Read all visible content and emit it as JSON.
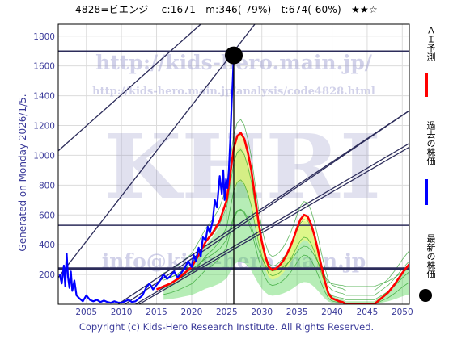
{
  "header": {
    "title": "4828=ビエンジ　 c:1671　m:346(-79%)　t:674(-60%)　★★☆"
  },
  "side_note": "Generated on Monday 2026/1/5.",
  "footer": "Copyright (c) Kids-Hero Research Institute. All Rights Reserved.",
  "watermarks": {
    "url_main": "http://kids-hero.main.jp/",
    "url_analysis": "http://kids-hero.main.jp/analysis/code4828.html",
    "logo": "KHRI",
    "email": "info@kids-hero.main.jp"
  },
  "legend": {
    "ai_forecast": "ＡＩ予測",
    "past_price": "過去の株価",
    "latest_price": "最新の株価"
  },
  "colors": {
    "ai_forecast": "#ff0000",
    "past_price": "#0000ff",
    "latest_price": "#000000",
    "band_green": "#2ecc2e",
    "band_yellow": "#ffff66",
    "trend_lines": "#2c2c5a",
    "axis_text": "#3b3b9a"
  },
  "chart_data": {
    "type": "line",
    "xlim": [
      2001,
      2051
    ],
    "ylim": [
      0,
      1880
    ],
    "x_ticks": [
      2005,
      2010,
      2015,
      2020,
      2025,
      2030,
      2035,
      2040,
      2045,
      2050
    ],
    "y_ticks": [
      200,
      400,
      600,
      800,
      1000,
      1200,
      1400,
      1600,
      1800
    ],
    "grid": true,
    "horizontal_levels": [
      1700,
      530,
      240
    ],
    "latest_point": {
      "x": 2026.0,
      "y": 1671
    },
    "vertical_marker_x": 2026.0,
    "trend_lines": [
      {
        "x": [
          2001,
          2021.3
        ],
        "y": [
          1030,
          1880
        ]
      },
      {
        "x": [
          2001,
          2029.0
        ],
        "y": [
          180,
          1880
        ]
      },
      {
        "x": [
          2010.5,
          2051
        ],
        "y": [
          0,
          1300
        ]
      },
      {
        "x": [
          2012.0,
          2051
        ],
        "y": [
          0,
          1080
        ]
      },
      {
        "x": [
          2012.5,
          2051
        ],
        "y": [
          0,
          1055
        ]
      },
      {
        "x": [
          2009.5,
          2051
        ],
        "y": [
          0,
          1300
        ]
      }
    ],
    "series": [
      {
        "name": "過去の株価",
        "x": [
          2001.2,
          2001.5,
          2001.8,
          2002.0,
          2002.2,
          2002.4,
          2002.6,
          2002.8,
          2003.0,
          2003.3,
          2003.6,
          2004.0,
          2004.5,
          2005.0,
          2005.5,
          2006.0,
          2006.5,
          2007.0,
          2007.5,
          2008.0,
          2008.5,
          2009.0,
          2009.5,
          2010.0,
          2010.5,
          2011.0,
          2011.5,
          2012.0,
          2012.5,
          2013.0,
          2013.5,
          2014.0,
          2014.5,
          2015.0,
          2015.5,
          2016.0,
          2016.5,
          2017.0,
          2017.5,
          2018.0,
          2018.5,
          2019.0,
          2019.5,
          2020.0,
          2020.3,
          2020.6,
          2021.0,
          2021.3,
          2021.6,
          2022.0,
          2022.3,
          2022.6,
          2023.0,
          2023.3,
          2023.6,
          2024.0,
          2024.3,
          2024.5,
          2024.7,
          2024.9,
          2025.1,
          2025.3,
          2025.5,
          2025.7,
          2025.85,
          2026.0
        ],
        "y": [
          200,
          140,
          260,
          120,
          340,
          180,
          110,
          220,
          90,
          160,
          60,
          40,
          20,
          60,
          30,
          20,
          30,
          15,
          25,
          15,
          10,
          20,
          12,
          10,
          20,
          30,
          15,
          20,
          40,
          60,
          110,
          140,
          100,
          130,
          160,
          200,
          170,
          190,
          220,
          180,
          210,
          240,
          290,
          250,
          330,
          290,
          380,
          320,
          450,
          430,
          520,
          480,
          560,
          700,
          650,
          860,
          740,
          900,
          700,
          840,
          780,
          900,
          1100,
          1350,
          1500,
          1671
        ]
      },
      {
        "name": "ＡＩ予測",
        "x": [
          2015.0,
          2016.0,
          2017.0,
          2018.0,
          2019.0,
          2020.0,
          2021.0,
          2022.0,
          2023.0,
          2024.0,
          2025.0,
          2026.0,
          2026.5,
          2027.0,
          2027.5,
          2028.0,
          2028.5,
          2029.0,
          2029.5,
          2030.0,
          2030.5,
          2031.0,
          2031.5,
          2032.0,
          2032.5,
          2033.0,
          2033.5,
          2034.0,
          2034.5,
          2035.0,
          2035.5,
          2036.0,
          2036.5,
          2037.0,
          2037.5,
          2038.0,
          2038.5,
          2039.0,
          2039.5,
          2040.0,
          2040.5,
          2041.0,
          2041.5,
          2042.0,
          2046.0,
          2047.0,
          2048.0,
          2049.0,
          2050.0,
          2051.0
        ],
        "y": [
          100,
          120,
          140,
          170,
          210,
          250,
          330,
          420,
          480,
          560,
          700,
          1050,
          1130,
          1150,
          1110,
          1020,
          900,
          730,
          560,
          420,
          320,
          250,
          230,
          240,
          260,
          290,
          330,
          380,
          440,
          510,
          570,
          600,
          590,
          540,
          460,
          360,
          250,
          150,
          70,
          40,
          30,
          20,
          15,
          0,
          0,
          40,
          80,
          140,
          210,
          270
        ]
      }
    ]
  }
}
